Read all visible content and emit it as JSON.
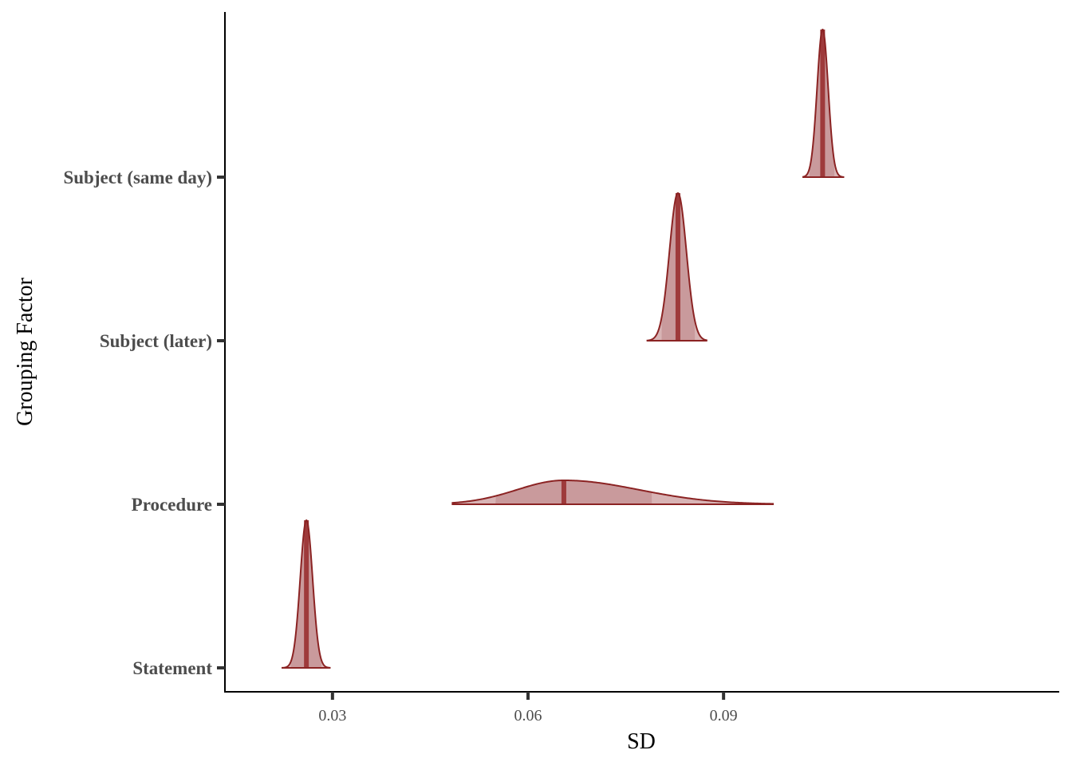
{
  "chart_data": {
    "type": "density",
    "xlabel": "SD",
    "ylabel": "Grouping Factor",
    "xlim": [
      0.0135,
      0.1415
    ],
    "x_ticks": [
      0.03,
      0.06,
      0.09
    ],
    "x_tick_labels": [
      "0.03",
      "0.06",
      "0.09"
    ],
    "grid": false,
    "colors": {
      "fill": "#d8b4b5",
      "inner_fill": "#c99a9c",
      "line": "#8b2323",
      "median": "#9e3a3b"
    },
    "categories": [
      "Statement",
      "Procedure",
      "Subject (later)",
      "Subject (same day)"
    ],
    "series": [
      {
        "category": "Statement",
        "median": 0.026,
        "sd": 0.00095,
        "skew": 0,
        "range": [
          0.0222,
          0.0297
        ],
        "interval": [
          0.0236,
          0.0283
        ]
      },
      {
        "category": "Procedure",
        "median": 0.0655,
        "sd": 0.0072,
        "skew": 0.012,
        "range": [
          0.0483,
          0.0977
        ],
        "interval": [
          0.055,
          0.079
        ]
      },
      {
        "category": "Subject (later)",
        "median": 0.083,
        "sd": 0.0013,
        "skew": 0,
        "range": [
          0.0782,
          0.0875
        ],
        "interval": [
          0.0805,
          0.0856
        ]
      },
      {
        "category": "Subject (same day)",
        "median": 0.1052,
        "sd": 0.00085,
        "skew": 0,
        "range": [
          0.1021,
          0.1085
        ],
        "interval": [
          0.1032,
          0.107
        ]
      }
    ]
  }
}
